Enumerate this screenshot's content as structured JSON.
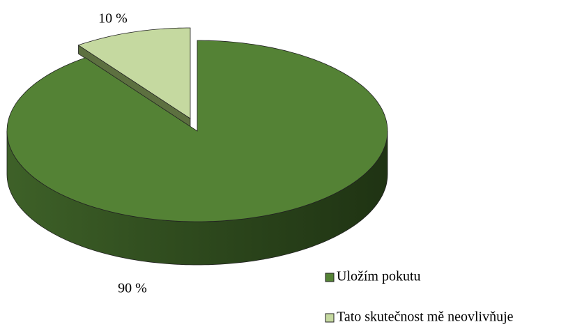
{
  "chart_data": {
    "type": "pie3d",
    "categories": [
      "Uložím pokutu",
      "Tato skutečnost mě neovlivňuje"
    ],
    "values": [
      90,
      10
    ],
    "value_labels": [
      "90 %",
      "10 %"
    ],
    "colors": [
      "#548235",
      "#c5d9a0"
    ],
    "legend": "bottom-right"
  }
}
